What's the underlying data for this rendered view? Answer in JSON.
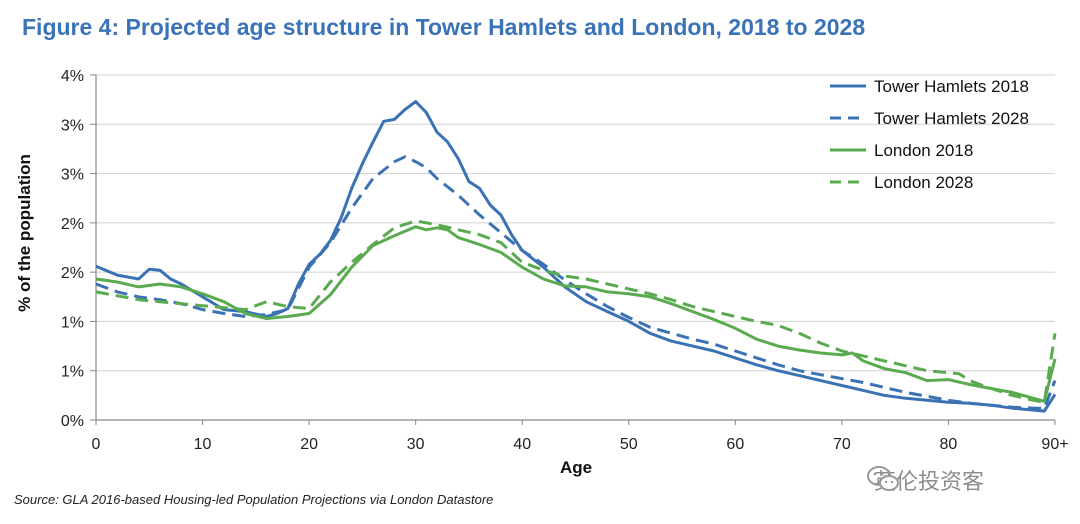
{
  "title": "Figure 4: Projected age structure in Tower Hamlets and London, 2018 to 2028",
  "source": "Source: GLA 2016-based Housing-led Population Projections via London Datastore",
  "watermark": "英伦投资客",
  "chart_data": {
    "type": "line",
    "title": "Figure 4: Projected age structure in Tower Hamlets and London, 2018 to 2028",
    "xlabel": "Age",
    "ylabel": "% of the population",
    "xlim": [
      0,
      90
    ],
    "ylim": [
      0,
      3.5
    ],
    "x_ticks": [
      0,
      10,
      20,
      30,
      40,
      50,
      60,
      70,
      80,
      90
    ],
    "x_tick_labels": [
      "0",
      "10",
      "20",
      "30",
      "40",
      "50",
      "60",
      "70",
      "80",
      "90+"
    ],
    "y_ticks": [
      0,
      0.5,
      1.0,
      1.5,
      2.0,
      2.5,
      3.0,
      3.5
    ],
    "y_tick_labels": [
      "0%",
      "1%",
      "1%",
      "2%",
      "2%",
      "3%",
      "3%",
      "4%"
    ],
    "grid": true,
    "legend_position": "top-right",
    "series": [
      {
        "name": "Tower Hamlets 2018",
        "color": "#3a72b4",
        "dash": "solid",
        "x": [
          0,
          2,
          4,
          5,
          6,
          7,
          8,
          10,
          12,
          14,
          16,
          17,
          18,
          19,
          20,
          21,
          22,
          23,
          24,
          25,
          26,
          27,
          28,
          29,
          30,
          31,
          32,
          33,
          34,
          35,
          36,
          37,
          38,
          39,
          40,
          42,
          44,
          46,
          48,
          50,
          52,
          54,
          56,
          58,
          60,
          62,
          64,
          66,
          68,
          70,
          72,
          74,
          76,
          78,
          80,
          82,
          84,
          86,
          88,
          89,
          90
        ],
        "y": [
          1.56,
          1.47,
          1.43,
          1.53,
          1.52,
          1.43,
          1.38,
          1.25,
          1.12,
          1.1,
          1.05,
          1.08,
          1.13,
          1.38,
          1.58,
          1.68,
          1.82,
          2.05,
          2.35,
          2.6,
          2.82,
          3.03,
          3.05,
          3.15,
          3.23,
          3.12,
          2.92,
          2.82,
          2.65,
          2.42,
          2.35,
          2.18,
          2.08,
          1.88,
          1.72,
          1.55,
          1.35,
          1.2,
          1.1,
          1.0,
          0.88,
          0.8,
          0.75,
          0.7,
          0.63,
          0.56,
          0.5,
          0.45,
          0.4,
          0.35,
          0.3,
          0.25,
          0.22,
          0.2,
          0.18,
          0.17,
          0.15,
          0.12,
          0.1,
          0.09,
          0.26
        ]
      },
      {
        "name": "Tower Hamlets 2028",
        "color": "#3a72b4",
        "dash": "dashed",
        "x": [
          0,
          2,
          4,
          6,
          8,
          10,
          12,
          14,
          16,
          18,
          20,
          22,
          24,
          26,
          28,
          29,
          30,
          31,
          32,
          34,
          36,
          38,
          40,
          42,
          44,
          46,
          48,
          50,
          52,
          54,
          56,
          58,
          60,
          62,
          64,
          66,
          68,
          70,
          72,
          74,
          76,
          78,
          80,
          82,
          84,
          86,
          88,
          89,
          90
        ],
        "y": [
          1.38,
          1.3,
          1.25,
          1.22,
          1.18,
          1.12,
          1.08,
          1.05,
          1.07,
          1.12,
          1.55,
          1.8,
          2.15,
          2.45,
          2.62,
          2.67,
          2.62,
          2.56,
          2.45,
          2.28,
          2.08,
          1.9,
          1.72,
          1.58,
          1.42,
          1.28,
          1.15,
          1.04,
          0.94,
          0.88,
          0.82,
          0.77,
          0.7,
          0.63,
          0.56,
          0.5,
          0.46,
          0.42,
          0.38,
          0.33,
          0.28,
          0.24,
          0.2,
          0.17,
          0.15,
          0.13,
          0.12,
          0.12,
          0.4
        ]
      },
      {
        "name": "London 2018",
        "color": "#5aab4f",
        "dash": "solid",
        "x": [
          0,
          2,
          4,
          6,
          8,
          10,
          12,
          14,
          16,
          18,
          20,
          22,
          24,
          26,
          28,
          30,
          31,
          32,
          33,
          34,
          36,
          38,
          40,
          42,
          44,
          46,
          48,
          50,
          52,
          54,
          56,
          58,
          60,
          62,
          64,
          66,
          68,
          70,
          71,
          72,
          74,
          76,
          78,
          80,
          82,
          84,
          86,
          88,
          89,
          90
        ],
        "y": [
          1.43,
          1.4,
          1.35,
          1.38,
          1.35,
          1.28,
          1.2,
          1.08,
          1.03,
          1.05,
          1.08,
          1.27,
          1.55,
          1.77,
          1.87,
          1.96,
          1.93,
          1.95,
          1.93,
          1.85,
          1.78,
          1.7,
          1.55,
          1.43,
          1.36,
          1.35,
          1.3,
          1.28,
          1.25,
          1.18,
          1.1,
          1.02,
          0.93,
          0.82,
          0.75,
          0.71,
          0.68,
          0.66,
          0.68,
          0.6,
          0.52,
          0.48,
          0.4,
          0.41,
          0.36,
          0.32,
          0.28,
          0.22,
          0.19,
          0.62
        ]
      },
      {
        "name": "London 2028",
        "color": "#5aab4f",
        "dash": "dashed",
        "x": [
          0,
          2,
          4,
          6,
          8,
          10,
          12,
          14,
          16,
          18,
          20,
          22,
          24,
          26,
          28,
          30,
          32,
          34,
          36,
          38,
          40,
          42,
          44,
          46,
          48,
          50,
          52,
          54,
          56,
          58,
          60,
          62,
          64,
          66,
          68,
          70,
          72,
          74,
          76,
          78,
          80,
          81,
          82,
          84,
          86,
          88,
          89,
          90
        ],
        "y": [
          1.3,
          1.26,
          1.22,
          1.2,
          1.18,
          1.16,
          1.14,
          1.12,
          1.2,
          1.15,
          1.13,
          1.4,
          1.6,
          1.78,
          1.95,
          2.02,
          1.98,
          1.93,
          1.88,
          1.8,
          1.6,
          1.52,
          1.46,
          1.43,
          1.38,
          1.33,
          1.28,
          1.22,
          1.15,
          1.1,
          1.05,
          1.0,
          0.96,
          0.88,
          0.78,
          0.7,
          0.65,
          0.6,
          0.55,
          0.5,
          0.48,
          0.47,
          0.4,
          0.32,
          0.25,
          0.2,
          0.18,
          0.88
        ]
      }
    ]
  }
}
